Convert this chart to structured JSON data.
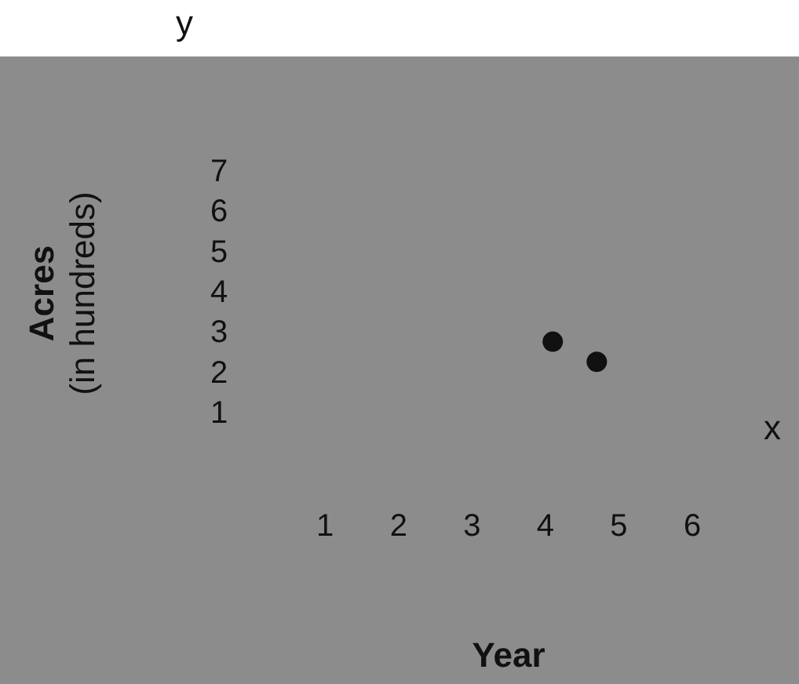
{
  "chart_data": {
    "type": "scatter",
    "xlabel": "Year",
    "ylabel": "Acres\n(in hundreds)",
    "annotations": [
      "y",
      "x"
    ],
    "series": [
      {
        "color": "#111111",
        "x": [
          4.1,
          4.7
        ],
        "values": [
          2.8,
          2.3
        ]
      }
    ],
    "xlim": [
      1,
      6
    ],
    "xticks": [
      1,
      2,
      3,
      4,
      5,
      6
    ],
    "ylim": [
      1,
      7
    ],
    "yticks": [
      1,
      2,
      3,
      4,
      5,
      6,
      7
    ],
    "marker": "circle",
    "grid": false,
    "legend": false
  }
}
